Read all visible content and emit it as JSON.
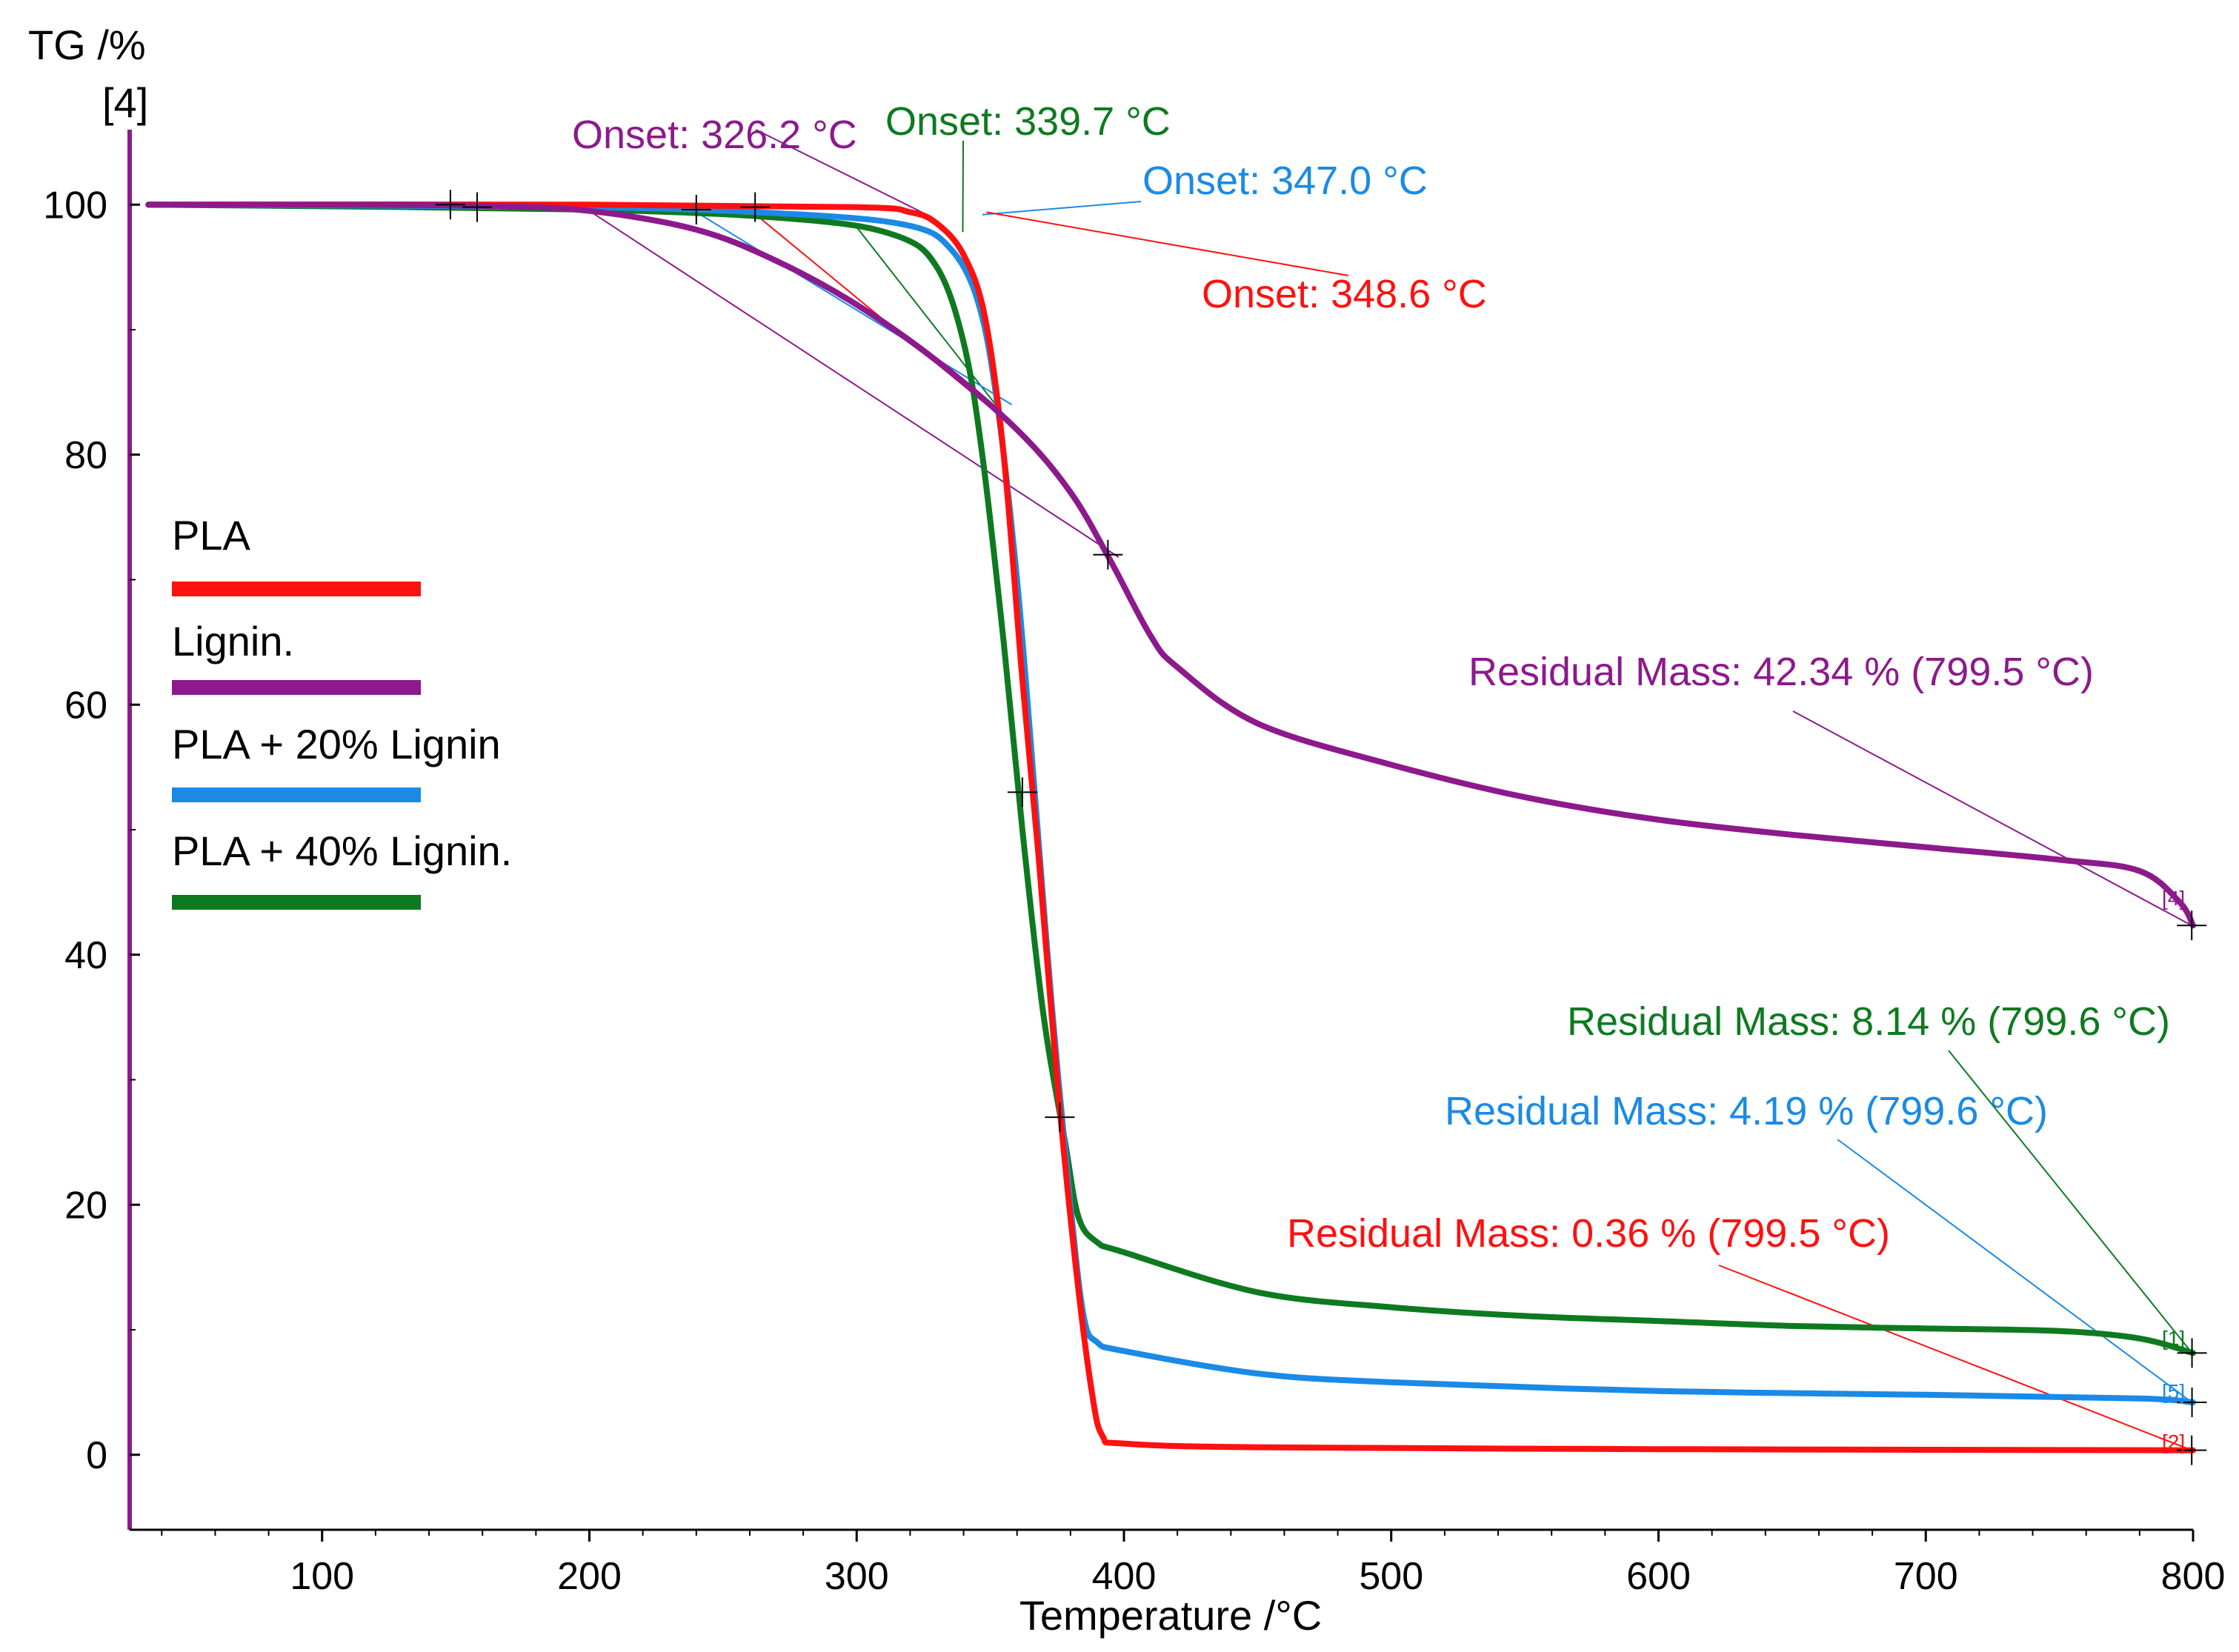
{
  "chart_data": {
    "type": "line",
    "title": "",
    "xlabel": "Temperature /°C",
    "ylabel": "TG /%",
    "ylabel_sub": "[4]",
    "xlim": [
      28,
      800
    ],
    "ylim": [
      -6,
      106
    ],
    "xticks": [
      100,
      200,
      300,
      400,
      500,
      600,
      700,
      800
    ],
    "yticks": [
      0,
      20,
      40,
      60,
      80,
      100
    ],
    "grid": false,
    "legend_position": "left-middle",
    "series": [
      {
        "name": "PLA",
        "color": "#ff1010",
        "tag": "[2]",
        "points": [
          [
            35,
            100
          ],
          [
            200,
            100
          ],
          [
            300,
            99.8
          ],
          [
            320,
            99.4
          ],
          [
            330,
            98.5
          ],
          [
            340,
            96
          ],
          [
            348,
            91
          ],
          [
            355,
            80
          ],
          [
            362,
            62
          ],
          [
            368,
            48
          ],
          [
            375,
            30
          ],
          [
            382,
            15
          ],
          [
            388,
            5
          ],
          [
            392,
            1.5
          ],
          [
            400,
            0.9
          ],
          [
            450,
            0.6
          ],
          [
            600,
            0.45
          ],
          [
            700,
            0.4
          ],
          [
            800,
            0.36
          ]
        ]
      },
      {
        "name": "Lignin.",
        "color": "#8c1a8c",
        "tag": "[4]",
        "points": [
          [
            35,
            100
          ],
          [
            100,
            100
          ],
          [
            160,
            99.9
          ],
          [
            200,
            99.5
          ],
          [
            240,
            98
          ],
          [
            270,
            95.5
          ],
          [
            300,
            92
          ],
          [
            330,
            87.5
          ],
          [
            360,
            82
          ],
          [
            380,
            77
          ],
          [
            395,
            71.5
          ],
          [
            410,
            65.5
          ],
          [
            420,
            63
          ],
          [
            450,
            58.5
          ],
          [
            500,
            55.2
          ],
          [
            550,
            52.6
          ],
          [
            600,
            50.8
          ],
          [
            650,
            49.6
          ],
          [
            700,
            48.6
          ],
          [
            750,
            47.6
          ],
          [
            780,
            46.7
          ],
          [
            795,
            44.2
          ],
          [
            800,
            42.34
          ]
        ]
      },
      {
        "name": "PLA + 20% Lignin",
        "color": "#1a8ae6",
        "tag": "[5]",
        "points": [
          [
            35,
            100
          ],
          [
            200,
            99.8
          ],
          [
            280,
            99.2
          ],
          [
            320,
            98.3
          ],
          [
            335,
            96.5
          ],
          [
            345,
            92.5
          ],
          [
            352,
            85
          ],
          [
            360,
            70
          ],
          [
            367,
            52
          ],
          [
            373,
            36
          ],
          [
            380,
            20
          ],
          [
            385,
            11
          ],
          [
            390,
            9
          ],
          [
            400,
            8.3
          ],
          [
            450,
            6.5
          ],
          [
            500,
            5.8
          ],
          [
            600,
            5.1
          ],
          [
            700,
            4.8
          ],
          [
            780,
            4.5
          ],
          [
            800,
            4.19
          ]
        ]
      },
      {
        "name": "PLA + 40% Lignin.",
        "color": "#0e7a20",
        "tag": "[1]",
        "points": [
          [
            35,
            100
          ],
          [
            200,
            99.6
          ],
          [
            280,
            98.8
          ],
          [
            315,
            97.5
          ],
          [
            330,
            95
          ],
          [
            340,
            89
          ],
          [
            347,
            80
          ],
          [
            355,
            65
          ],
          [
            362,
            50
          ],
          [
            370,
            35
          ],
          [
            378,
            25
          ],
          [
            383,
            19
          ],
          [
            390,
            17
          ],
          [
            400,
            16.2
          ],
          [
            450,
            13
          ],
          [
            500,
            11.8
          ],
          [
            550,
            11.1
          ],
          [
            600,
            10.7
          ],
          [
            650,
            10.3
          ],
          [
            700,
            10.1
          ],
          [
            750,
            9.9
          ],
          [
            780,
            9.3
          ],
          [
            800,
            8.14
          ]
        ]
      }
    ],
    "annotations": [
      {
        "text": "Onset: 326.2 °C",
        "series": "Lignin.",
        "color": "#8c1a8c",
        "value": 326.2
      },
      {
        "text": "Onset: 339.7 °C",
        "series": "PLA + 40% Lignin.",
        "color": "#0e7a20",
        "value": 339.7
      },
      {
        "text": "Onset: 347.0 °C",
        "series": "PLA + 20% Lignin",
        "color": "#1a8ae6",
        "value": 347.0
      },
      {
        "text": "Onset: 348.6 °C",
        "series": "PLA",
        "color": "#ff1010",
        "value": 348.6
      },
      {
        "text": "Residual Mass: 42.34 % (799.5 °C)",
        "series": "Lignin.",
        "color": "#8c1a8c",
        "value": 42.34
      },
      {
        "text": "Residual Mass: 8.14 % (799.6 °C)",
        "series": "PLA + 40% Lignin.",
        "color": "#0e7a20",
        "value": 8.14
      },
      {
        "text": "Residual Mass: 4.19 % (799.6 °C)",
        "series": "PLA + 20% Lignin",
        "color": "#1a8ae6",
        "value": 4.19
      },
      {
        "text": "Residual Mass: 0.36 % (799.5 °C)",
        "series": "PLA",
        "color": "#ff1010",
        "value": 0.36
      }
    ],
    "axis_color": "#8c1a8c"
  }
}
